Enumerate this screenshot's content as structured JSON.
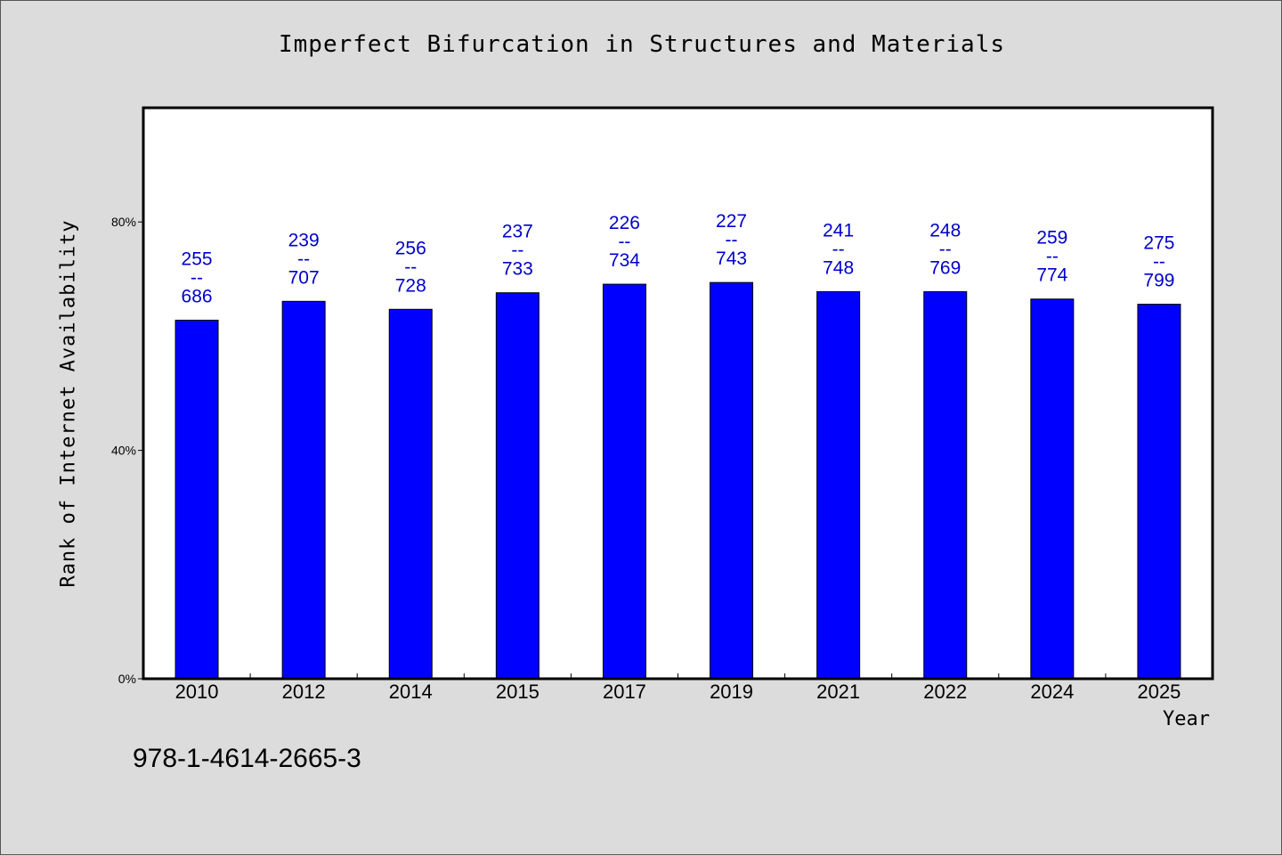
{
  "chart_data": {
    "type": "bar",
    "title": "Imperfect Bifurcation in Structures and Materials",
    "xlabel": "Year",
    "ylabel": "Rank of Internet Availability",
    "ylim": [
      0,
      1.0
    ],
    "yticks": [
      {
        "value": 0.0,
        "label": "0%"
      },
      {
        "value": 0.4,
        "label": "40%"
      },
      {
        "value": 0.8,
        "label": "80%"
      }
    ],
    "grid": false,
    "bar_color": "#0000ff",
    "label_color": "#0000cc",
    "categories": [
      "2010",
      "2012",
      "2014",
      "2015",
      "2017",
      "2019",
      "2021",
      "2022",
      "2024",
      "2025"
    ],
    "values": [
      0.628,
      0.661,
      0.647,
      0.676,
      0.691,
      0.694,
      0.678,
      0.678,
      0.665,
      0.656
    ],
    "data_labels": [
      [
        "255",
        "--",
        "686"
      ],
      [
        "239",
        "--",
        "707"
      ],
      [
        "256",
        "--",
        "728"
      ],
      [
        "237",
        "--",
        "733"
      ],
      [
        "226",
        "--",
        "734"
      ],
      [
        "227",
        "--",
        "743"
      ],
      [
        "241",
        "--",
        "748"
      ],
      [
        "248",
        "--",
        "769"
      ],
      [
        "259",
        "--",
        "774"
      ],
      [
        "275",
        "--",
        "799"
      ]
    ]
  },
  "footer": {
    "isbn": "978-1-4614-2665-3"
  }
}
